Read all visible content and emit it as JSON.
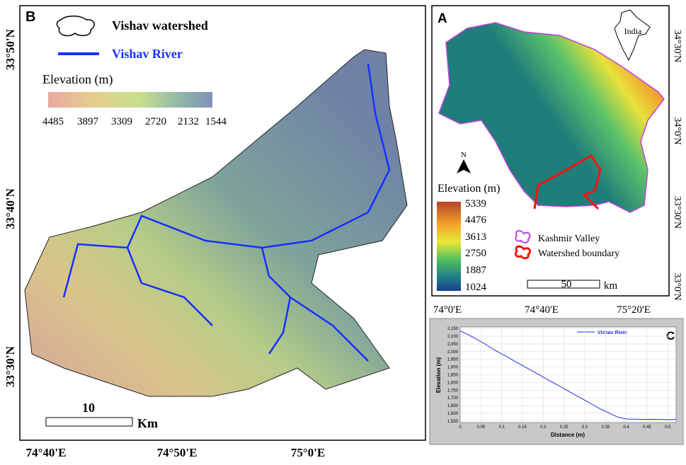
{
  "panel_b": {
    "label": "B",
    "legend": {
      "watershed": "Vishav watershed",
      "river": "Vishav River"
    },
    "elevation_title": "Elevation (m)",
    "elevation_ticks": [
      "4485",
      "3897",
      "3309",
      "2720",
      "2132",
      "1544"
    ],
    "scale_value": "10",
    "scale_unit": "Km",
    "lat_labels": [
      "33°50'N",
      "33°40'N",
      "33°30'N"
    ],
    "lon_labels": [
      "74°40'E",
      "74°50'E",
      "75°0'E"
    ]
  },
  "panel_a": {
    "label": "A",
    "inset": "India",
    "north": "N",
    "elevation_title": "Elevation (m)",
    "elevation_ticks": [
      "5339",
      "4476",
      "3613",
      "2750",
      "1887",
      "1024"
    ],
    "legend": {
      "valley": "Kashmir Valley",
      "watershed": "Watershed boundary"
    },
    "scale_value": "50",
    "scale_unit": "km",
    "lat_labels": [
      "34°30'N",
      "34°0'N",
      "33°30'N",
      "33°0'N"
    ],
    "lon_labels": [
      "74°0'E",
      "74°40'E",
      "75°20'E"
    ]
  },
  "chart_data": {
    "type": "line",
    "label": "C",
    "x_label": "Distance (m)",
    "y_label": "Elevation (m)",
    "x": [
      0,
      0.02,
      0.04,
      0.06,
      0.08,
      0.1,
      0.12,
      0.14,
      0.16,
      0.18,
      0.2,
      0.22,
      0.24,
      0.26,
      0.28,
      0.3,
      0.32,
      0.34,
      0.36,
      0.38,
      0.4,
      0.42,
      0.44,
      0.46,
      0.48,
      0.5,
      0.52
    ],
    "series": [
      {
        "name": "Vishav River",
        "color": "#1f2fd6",
        "values": [
          2135,
          2110,
          2080,
          2050,
          2015,
          1985,
          1955,
          1925,
          1895,
          1865,
          1835,
          1805,
          1775,
          1745,
          1715,
          1685,
          1655,
          1625,
          1600,
          1575,
          1563,
          1562,
          1560,
          1561,
          1560,
          1559,
          1560
        ]
      }
    ],
    "xlim": [
      0,
      0.52
    ],
    "xticks": [
      0,
      0.05,
      0.1,
      0.15,
      0.2,
      0.25,
      0.3,
      0.35,
      0.4,
      0.45,
      0.5
    ],
    "ylim": [
      1540,
      2160
    ],
    "yticks": [
      {
        "value": 1550,
        "label": "1,550"
      },
      {
        "value": 1600,
        "label": "1,600"
      },
      {
        "value": 1650,
        "label": "1,650"
      },
      {
        "value": 1700,
        "label": "1,700"
      },
      {
        "value": 1750,
        "label": "1,750"
      },
      {
        "value": 1800,
        "label": "1,800"
      },
      {
        "value": 1850,
        "label": "1,850"
      },
      {
        "value": 1900,
        "label": "1,900"
      },
      {
        "value": 1950,
        "label": "1,950"
      },
      {
        "value": 2000,
        "label": "2,000"
      },
      {
        "value": 2050,
        "label": "2,050"
      },
      {
        "value": 2100,
        "label": "2,100"
      },
      {
        "value": 2150,
        "label": "2,150"
      }
    ],
    "grid": true
  }
}
